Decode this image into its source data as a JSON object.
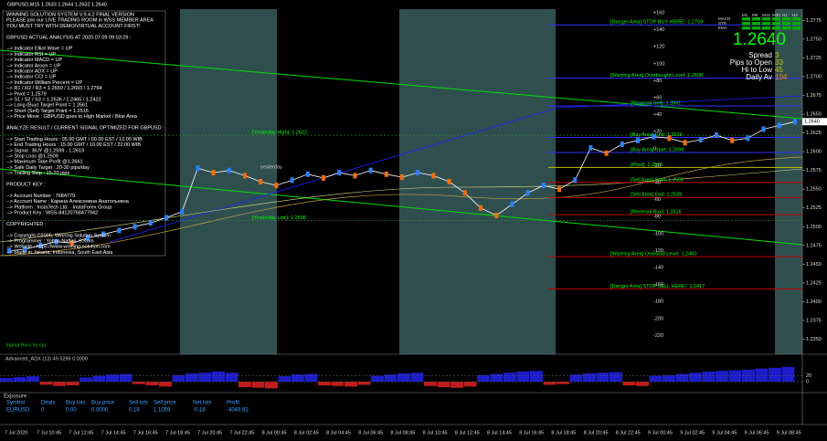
{
  "title_bar": "GBPUSD,M15  1.2633 1.2644 1.2632 1.2640",
  "panel": {
    "sections": [
      [
        "WINNING SOLUTION SYSTEM V.9.4.2 FINAL VERSION",
        "PLEASE join our LIVE TRADING ROOM in WSS MEMBER AREA",
        "YOU MUST TRY WITH DEMO/VIRTUAL ACCOUNT FIRST!"
      ],
      [
        "GBPUSD ACTUAL ANALYSIS AT 2020.07.09 09:03:29 :"
      ],
      [
        "--> Indicator Elliot Wave = UP",
        "--> Indicator RSI = UP",
        "--> Indicator MACD = UP",
        "--> Indicator Aroon = UP",
        "--> Indicator ADX = UP",
        "--> Indicator CCI = UP",
        "--> Indicator William Percent = UP",
        "--> R1 / R2 / R3 = 1.2650 / 1.2693 / 1.2764",
        "--> Pivot = 1.2579",
        "--> S1 / S2 / S3 = 1.2536 / 1.2465 / 1.2422",
        "--> Long (Buy) Target Point = 1.2661",
        "--> Short (Sell) Target Point = 1.2515",
        "--> Price Move : GBPUSD goes to High Market / Blue Area"
      ],
      [
        "ANALYZE RESULT / CURRENT SIGNAL OPTIMIZED FOR GBPUSD :"
      ],
      [
        "--> Start Trading Hours : 05.00 GMT / 00.00 EST / 12.00 WIB",
        "--> End Trading Hours : 15.00 GMT / 10.00 EST / 22.00 WIB",
        "--> Signal : BUY @1.2599 - 1.2619",
        "--> Stop Loss @1.2509",
        "--> Maximum Take Profit @1.2661",
        "--> Safe Daily Target : 20-30 pips/day",
        "--> Trailing Stop : 15-20 pips"
      ],
      [
        "PRODUCT KEY :"
      ],
      [
        "--> Account Number : 7684779",
        "--> Account Name : Карина Алексеевна Анатольевна",
        "--> Platform : InstaTech Ltd. - InstaForex Group",
        "--> Product Key : WSS-84120768477942"
      ],
      [
        "COPYRIGHTED :"
      ],
      [
        "--> Copyright ©2006, Winning Solution System",
        "--> Programmer : Yohan Naftali, S.Kom",
        "--> Website : https://www.winning-solution.com",
        "--> Made in Jakarta, Indonesia, South East Asia"
      ]
    ]
  },
  "signal_credit": "Signal Bars by cja",
  "yesterday_label": "yesterday",
  "info": {
    "price": "1.2640",
    "rows": [
      [
        "Spread",
        "3"
      ],
      [
        "Pips to Open",
        "33"
      ],
      [
        "Hi to Low",
        "45"
      ],
      [
        "Daily Av",
        "104"
      ]
    ],
    "tf": [
      "M1",
      "M5",
      "M15",
      "M30",
      "H1",
      "H4"
    ],
    "ind": [
      "MACD",
      "STR",
      "EMA"
    ]
  },
  "levels": [
    {
      "value": 1.2769,
      "label": "[Danger Area] STOP BUY HERE!: 1.2769",
      "color": "#3030ff"
    },
    {
      "value": 1.2698,
      "label": "[Warning Area] Overbought Level: 1.2698",
      "color": "#3030ff"
    },
    {
      "value": 1.2661,
      "label": "[Reversal Sell]: 1.2661",
      "color": "#3030ff"
    },
    {
      "value": 1.2622,
      "label": "[Yesterday High]: 1.2622",
      "color": "#3a8a3a"
    },
    {
      "value": 1.2619,
      "label": "[Buy Area] End: 1.2619",
      "color": "#3030ff"
    },
    {
      "value": 1.2599,
      "label": "[Buy Area] Start: 1.2599",
      "color": "#3030ff"
    },
    {
      "value": 1.2579,
      "label": "[Pivot]: 1.2579",
      "color": "#c0c000"
    },
    {
      "value": 1.2559,
      "label": "[Sell Area] Start: 1.2559",
      "color": "#c00000"
    },
    {
      "value": 1.2539,
      "label": "[Sell Area] End: 1.2539",
      "color": "#c00000"
    },
    {
      "value": 1.2516,
      "label": "[Reversal Buy]: 1.2516",
      "color": "#c00000"
    },
    {
      "value": 1.2508,
      "label": "[Yesterday Low]: 1.2508",
      "color": "#3a8a3a"
    },
    {
      "value": 1.246,
      "label": "[Warning Area] Oversold Level: 1.2460",
      "color": "#c00000"
    },
    {
      "value": 1.2417,
      "label": "[Danger Area] STOP SELL HERE!: 1.2417",
      "color": "#c00000"
    }
  ],
  "pip_scale": [
    "+160",
    "+140",
    "+120",
    "+100",
    "+80",
    "+60",
    "+40",
    "+20",
    "0",
    "-20",
    "-40",
    "-60",
    "-80",
    "-100",
    "-120",
    "-140",
    "-160",
    "-180",
    "-200",
    "-220"
  ],
  "chart": {
    "ylim": [
      1.233,
      1.279
    ],
    "yticks": [
      {
        "value": 1.235,
        "label": "1.2350"
      },
      {
        "value": 1.2375,
        "label": "1.2375"
      },
      {
        "value": 1.24,
        "label": "1.2400"
      },
      {
        "value": 1.2425,
        "label": "1.2425"
      },
      {
        "value": 1.245,
        "label": "1.2450"
      },
      {
        "value": 1.2475,
        "label": "1.2475"
      },
      {
        "value": 1.25,
        "label": "1.2500"
      },
      {
        "value": 1.2525,
        "label": "1.2525"
      },
      {
        "value": 1.255,
        "label": "1.2550"
      },
      {
        "value": 1.2575,
        "label": "1.2575"
      },
      {
        "value": 1.26,
        "label": "1.2600"
      },
      {
        "value": 1.2625,
        "label": "1.2625"
      },
      {
        "value": 1.265,
        "label": "1.2650"
      },
      {
        "value": 1.2675,
        "label": "1.2675"
      },
      {
        "value": 1.27,
        "label": "1.2700"
      },
      {
        "value": 1.2725,
        "label": "1.2725"
      },
      {
        "value": 1.275,
        "label": "1.2750"
      },
      {
        "value": 1.2775,
        "label": "1.2775"
      }
    ],
    "last_price": {
      "value": 1.264,
      "label": "1.2640"
    },
    "closes": [
      1.2468,
      1.247,
      1.2475,
      1.248,
      1.2478,
      1.2485,
      1.249,
      1.2495,
      1.25,
      1.2505,
      1.2512,
      1.252,
      1.2578,
      1.2572,
      1.2575,
      1.2568,
      1.256,
      1.2555,
      1.2562,
      1.257,
      1.2565,
      1.2572,
      1.2568,
      1.2575,
      1.257,
      1.2566,
      1.2572,
      1.2568,
      1.256,
      1.2545,
      1.2525,
      1.2515,
      1.253,
      1.2545,
      1.2555,
      1.255,
      1.2562,
      1.2605,
      1.2598,
      1.261,
      1.2615,
      1.262,
      1.2618,
      1.2612,
      1.2616,
      1.2622,
      1.2615,
      1.2618,
      1.263,
      1.2635,
      1.264
    ],
    "xlabels": [
      "7 Jul 2020",
      "7 Jul 10:45",
      "7 Jul 12:45",
      "7 Jul 14:45",
      "7 Jul 16:45",
      "7 Jul 18:45",
      "7 Jul 20:45",
      "7 Jul 22:45",
      "8 Jul 00:45",
      "8 Jul 02:45",
      "8 Jul 04:45",
      "8 Jul 06:45",
      "8 Jul 08:45",
      "8 Jul 10:45",
      "8 Jul 12:45",
      "8 Jul 14:45",
      "8 Jul 16:45",
      "8 Jul 18:45",
      "8 Jul 20:45",
      "8 Jul 22:45",
      "9 Jul 00:45",
      "9 Jul 02:45",
      "9 Jul 04:45",
      "9 Jul 06:45",
      "9 Jul 08:45"
    ]
  },
  "adx": {
    "title": "Advanced_ADX (13) 49.5296 0.0000",
    "ylim": [
      -30,
      70
    ],
    "ticks": [
      20,
      0
    ],
    "values": [
      12,
      15,
      18,
      -10,
      -14,
      -12,
      14,
      20,
      24,
      26,
      -8,
      -12,
      -16,
      22,
      28,
      30,
      34,
      30,
      -18,
      -20,
      -22,
      18,
      24,
      26,
      -12,
      -14,
      -16,
      -10,
      20,
      24,
      28,
      30,
      -14,
      -18,
      -20,
      -16,
      22,
      26,
      30,
      34,
      36,
      -10,
      -8,
      24,
      28,
      30,
      32,
      -12,
      -14,
      20,
      22,
      26,
      30,
      34,
      36,
      38,
      40,
      44,
      46,
      49.5
    ]
  },
  "exposure": {
    "title": "Exposure",
    "headers": [
      "Symbol",
      "Deals",
      "Buy lots",
      "Buy price",
      "Sell lots",
      "Sell price",
      "Net lots",
      "Profit"
    ],
    "row": [
      "EURUSD",
      "0",
      "0.00",
      "0.0000",
      "0.18",
      "1.1059",
      "-0.18",
      "-4049.92"
    ]
  }
}
